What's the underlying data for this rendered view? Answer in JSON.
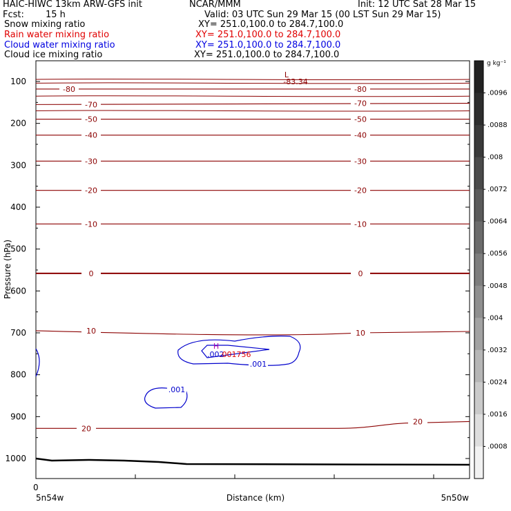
{
  "header": {
    "title": "HAIC-HIWC 13km ARW-GFS init",
    "org": "NCAR/MMM",
    "init": "Init: 12 UTC Sat 28 Mar 15",
    "fcst_label": "Fcst:",
    "fcst_value": "15 h",
    "valid": "Valid: 03 UTC Sun 29 Mar 15 (00 LST Sun 29 Mar 15)",
    "fields": [
      {
        "name": "Snow mixing ratio",
        "xy": "XY= 251.0,100.0 to 284.7,100.0",
        "color": "#000000"
      },
      {
        "name": "Rain water mixing ratio",
        "xy": "XY= 251.0,100.0 to 284.7,100.0",
        "color": "#e00000"
      },
      {
        "name": "Cloud water mixing ratio",
        "xy": "XY= 251.0,100.0 to 284.7,100.0",
        "color": "#0000e0"
      },
      {
        "name": "Cloud ice mixing ratio",
        "xy": "XY= 251.0,100.0 to 284.7,100.0",
        "color": "#000000"
      }
    ]
  },
  "chart_data": {
    "type": "contour",
    "ylabel": "Pressure (hPa)",
    "xlabel": "Distance (km)",
    "y_ticks": [
      100,
      200,
      300,
      400,
      500,
      600,
      700,
      800,
      900,
      1000
    ],
    "ylim": [
      1050,
      50
    ],
    "x_start_label": "0",
    "x_left_label": "5n54w",
    "x_right_label": "5n50w",
    "temperature_contours": {
      "color": "#8b0000",
      "levels": [
        {
          "value": -80,
          "label": "-80",
          "p_left": 118,
          "p_right": 118
        },
        {
          "value": -70,
          "label": "-70",
          "p_left": 155,
          "p_right": 152
        },
        {
          "value": -50,
          "label": "-50",
          "p_left": 190,
          "p_right": 190
        },
        {
          "value": -40,
          "label": "-40",
          "p_left": 228,
          "p_right": 228
        },
        {
          "value": -30,
          "label": "-30",
          "p_left": 290,
          "p_right": 290
        },
        {
          "value": -20,
          "label": "-20",
          "p_left": 360,
          "p_right": 360
        },
        {
          "value": -10,
          "label": "-10",
          "p_left": 440,
          "p_right": 440
        },
        {
          "value": 0,
          "label": "0",
          "p_left": 558,
          "p_right": 558
        },
        {
          "value": 10,
          "label": "10",
          "p_left": 695,
          "p_right": 700
        },
        {
          "value": 20,
          "label": "20",
          "p_left": 928,
          "p_right": 915
        }
      ],
      "min_label": "-83.34",
      "min_marker": "L"
    },
    "cloud_water_contours": {
      "color": "#0000cc",
      "labels": [
        ".001",
        ".001"
      ],
      "max_marker": "H",
      "max_value": ".002",
      "rain_max_value": ".001756"
    },
    "colorbar": {
      "unit": "g kg⁻¹",
      "ticks": [
        ".0096",
        ".0088",
        ".008",
        ".0072",
        ".0064",
        ".0056",
        ".0048",
        ".004",
        ".0032",
        ".0024",
        ".0016",
        ".0008"
      ],
      "colors": [
        "#222222",
        "#2d2d2d",
        "#3a3a3a",
        "#4a4a4a",
        "#5a5a5a",
        "#6b6b6b",
        "#7d7d7d",
        "#8f8f8f",
        "#a2a2a2",
        "#b6b6b6",
        "#cacaca",
        "#dedede",
        "#f2f2f2"
      ]
    }
  }
}
